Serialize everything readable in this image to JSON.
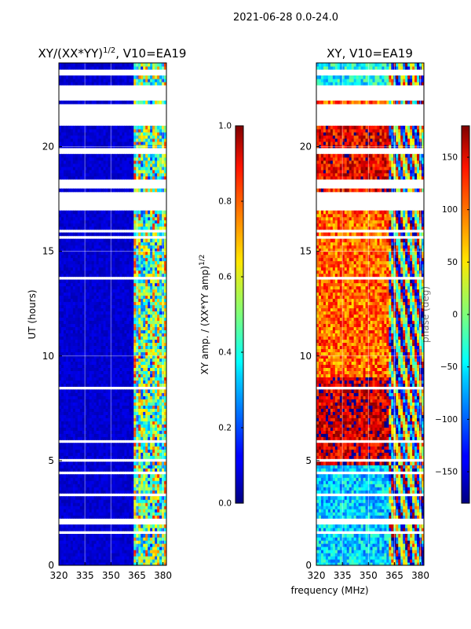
{
  "suptitle": "2021-06-28 0.0-24.0",
  "xlabel_shared": "frequency (MHz)",
  "chart_data": [
    {
      "type": "heatmap",
      "title_main": "XY/(XX*YY)",
      "title_sup": "1/2",
      "title_rest": ", V10=EA19",
      "xlabel": "",
      "ylabel": "UT (hours)",
      "xlim": [
        320,
        382
      ],
      "ylim": [
        0,
        24
      ],
      "xticks": [
        320,
        335,
        350,
        365,
        380
      ],
      "yticks": [
        0,
        5,
        10,
        15,
        20
      ],
      "grid": true,
      "colorbar": {
        "label_main": "XY amp. / (XX*YY amp)",
        "label_sup": "1/2",
        "range": [
          0.0,
          1.0
        ],
        "ticks": [
          "0.0",
          "0.2",
          "0.4",
          "0.6",
          "0.8",
          "1.0"
        ],
        "tick_values": [
          0.0,
          0.2,
          0.4,
          0.6,
          0.8,
          1.0
        ],
        "colormap": "jet"
      },
      "blank_rows_ut": [
        [
          22.2,
          22.9
        ],
        [
          21.0,
          22.1
        ],
        [
          19.7,
          19.9
        ],
        [
          18.0,
          18.5
        ],
        [
          16.9,
          17.8
        ],
        [
          15.9,
          16.0
        ],
        [
          15.6,
          15.7
        ],
        [
          13.7,
          13.8
        ],
        [
          13.3,
          13.4
        ],
        [
          10.3,
          10.4
        ],
        [
          8.4,
          8.5
        ],
        [
          5.9,
          6.0
        ],
        [
          5.0,
          5.1
        ],
        [
          4.3,
          4.5
        ],
        [
          3.3,
          3.4
        ],
        [
          2.0,
          2.2
        ],
        [
          1.5,
          1.6
        ],
        [
          23.4,
          23.5
        ],
        [
          23.6,
          23.7
        ]
      ],
      "channel_structure": [
        {
          "freq_range": [
            320,
            363
          ],
          "typical_value": 0.08
        },
        {
          "freq_range": [
            363,
            382
          ],
          "typical_value": 0.45
        }
      ]
    },
    {
      "type": "heatmap",
      "title": "XY, V10=EA19",
      "xlabel": "frequency (MHz)",
      "ylabel": "",
      "xlim": [
        320,
        382
      ],
      "ylim": [
        0,
        24
      ],
      "xticks": [
        320,
        335,
        350,
        365,
        380
      ],
      "yticks": [
        0,
        5,
        10,
        15,
        20
      ],
      "grid": true,
      "colorbar": {
        "label": "phase (deg)",
        "range": [
          -180,
          180
        ],
        "ticks": [
          "150",
          "100",
          "50",
          "0",
          "−50",
          "−100",
          "−150"
        ],
        "tick_values": [
          150,
          100,
          50,
          0,
          -50,
          -100,
          -150
        ],
        "colormap": "jet"
      },
      "phase_bands_ut": [
        {
          "ut_range": [
            0,
            4.8
          ],
          "typical_phase": -60
        },
        {
          "ut_range": [
            4.8,
            9.0
          ],
          "typical_phase": 150
        },
        {
          "ut_range": [
            9.0,
            17.0
          ],
          "typical_phase": 100
        },
        {
          "ut_range": [
            17.0,
            21.0
          ],
          "typical_phase": 140
        },
        {
          "ut_range": [
            22.9,
            24.0
          ],
          "typical_phase": -40
        }
      ]
    }
  ]
}
